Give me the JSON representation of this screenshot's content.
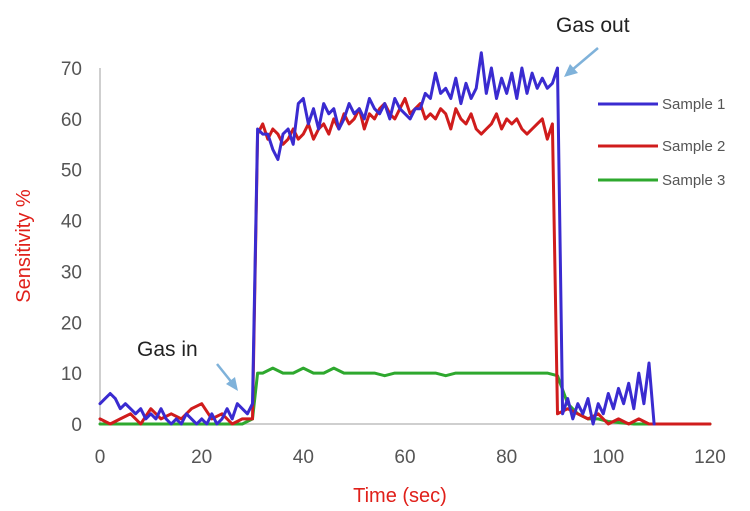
{
  "chart_data": {
    "type": "line",
    "title": "",
    "xlabel": "Time (sec)",
    "ylabel": "Sensitivity %",
    "xlim": [
      0,
      120
    ],
    "ylim": [
      0,
      70
    ],
    "xticks": [
      0,
      20,
      40,
      60,
      80,
      100,
      120
    ],
    "yticks": [
      0,
      10,
      20,
      30,
      40,
      50,
      60,
      70
    ],
    "grid": false,
    "legend_position": "right",
    "colors": {
      "axis_title": "#e0201a",
      "axis_line": "#bfbfbf",
      "arrow": "#7fb2da"
    },
    "series": [
      {
        "name": "Sample 1",
        "color": "#3a2bd0",
        "x": [
          0,
          1,
          2,
          3,
          4,
          5,
          6,
          7,
          8,
          9,
          10,
          11,
          12,
          13,
          14,
          15,
          16,
          17,
          18,
          19,
          20,
          21,
          22,
          23,
          24,
          25,
          26,
          27,
          28,
          29,
          30,
          31,
          32,
          33,
          34,
          35,
          36,
          37,
          38,
          39,
          40,
          41,
          42,
          43,
          44,
          45,
          46,
          47,
          48,
          49,
          50,
          51,
          52,
          53,
          54,
          55,
          56,
          57,
          58,
          59,
          60,
          61,
          62,
          63,
          64,
          65,
          66,
          67,
          68,
          69,
          70,
          71,
          72,
          73,
          74,
          75,
          76,
          77,
          78,
          79,
          80,
          81,
          82,
          83,
          84,
          85,
          86,
          87,
          88,
          89,
          90,
          91,
          92,
          93,
          94,
          95,
          96,
          97,
          98,
          99,
          100,
          101,
          102,
          103,
          104,
          105,
          106,
          107,
          108,
          109
        ],
        "values": [
          4,
          5,
          6,
          5,
          3,
          4,
          3,
          2,
          3,
          1,
          2,
          1,
          3,
          1,
          0,
          1,
          0,
          2,
          1,
          0,
          1,
          0,
          2,
          0,
          1,
          3,
          1,
          4,
          3,
          2,
          4,
          58,
          57,
          57,
          54,
          52,
          57,
          58,
          55,
          63,
          64,
          59,
          62,
          58,
          63,
          61,
          62,
          58,
          60,
          63,
          61,
          62,
          60,
          64,
          62,
          61,
          63,
          60,
          64,
          62,
          61,
          60,
          62,
          62,
          65,
          64,
          69,
          65,
          66,
          64,
          68,
          63,
          67,
          64,
          66,
          73,
          65,
          70,
          64,
          68,
          65,
          69,
          64,
          70,
          65,
          69,
          66,
          68,
          66,
          67,
          70,
          2,
          5,
          1,
          4,
          2,
          5,
          0,
          4,
          2,
          6,
          3,
          7,
          4,
          8,
          3,
          10,
          4,
          12,
          0
        ]
      },
      {
        "name": "Sample 2",
        "color": "#d01c1c",
        "x": [
          0,
          2,
          4,
          6,
          8,
          10,
          12,
          14,
          16,
          18,
          20,
          22,
          24,
          26,
          28,
          29,
          30,
          31,
          32,
          33,
          34,
          35,
          36,
          37,
          38,
          39,
          40,
          41,
          42,
          43,
          44,
          45,
          46,
          47,
          48,
          49,
          50,
          51,
          52,
          53,
          54,
          55,
          56,
          57,
          58,
          59,
          60,
          61,
          62,
          63,
          64,
          65,
          66,
          67,
          68,
          69,
          70,
          71,
          72,
          73,
          74,
          75,
          76,
          77,
          78,
          79,
          80,
          81,
          82,
          83,
          84,
          85,
          86,
          87,
          88,
          89,
          90,
          92,
          94,
          96,
          98,
          100,
          102,
          104,
          106,
          108,
          110,
          115,
          120
        ],
        "values": [
          1,
          0,
          1,
          2,
          0,
          3,
          1,
          2,
          1,
          3,
          4,
          1,
          2,
          0,
          1,
          1,
          1,
          57,
          59,
          56,
          58,
          57,
          55,
          56,
          58,
          56,
          57,
          59,
          56,
          58,
          59,
          57,
          60,
          58,
          61,
          59,
          60,
          62,
          58,
          61,
          60,
          62,
          63,
          61,
          60,
          62,
          64,
          61,
          62,
          63,
          60,
          61,
          60,
          62,
          61,
          58,
          62,
          60,
          59,
          61,
          58,
          57,
          58,
          59,
          61,
          58,
          60,
          59,
          60,
          58,
          57,
          58,
          59,
          60,
          56,
          59,
          2,
          3,
          2,
          1,
          2,
          0,
          1,
          0,
          1,
          0,
          0,
          0,
          0
        ]
      },
      {
        "name": "Sample 3",
        "color": "#2ea82e",
        "x": [
          0,
          5,
          10,
          15,
          20,
          25,
          28,
          30,
          31,
          32,
          34,
          36,
          38,
          40,
          42,
          44,
          46,
          48,
          50,
          52,
          54,
          56,
          58,
          60,
          62,
          64,
          66,
          68,
          70,
          72,
          74,
          76,
          78,
          80,
          82,
          84,
          86,
          88,
          90,
          92,
          94,
          96,
          98,
          100,
          105,
          110,
          115,
          120
        ],
        "values": [
          0,
          0,
          0,
          0,
          0,
          0,
          0,
          1,
          10,
          10,
          11,
          10,
          10,
          11,
          10,
          10,
          11,
          10,
          10,
          10,
          10,
          9.5,
          10,
          10,
          10,
          10,
          10,
          9.5,
          10,
          10,
          10,
          10,
          10,
          10,
          10,
          10,
          10,
          10,
          9.5,
          4,
          2,
          1,
          1,
          0.5,
          0,
          0,
          0,
          0
        ]
      }
    ],
    "annotations": [
      {
        "text": "Gas in",
        "x": 30,
        "y": 7
      },
      {
        "text": "Gas out",
        "x": 92,
        "y": 72
      }
    ]
  }
}
